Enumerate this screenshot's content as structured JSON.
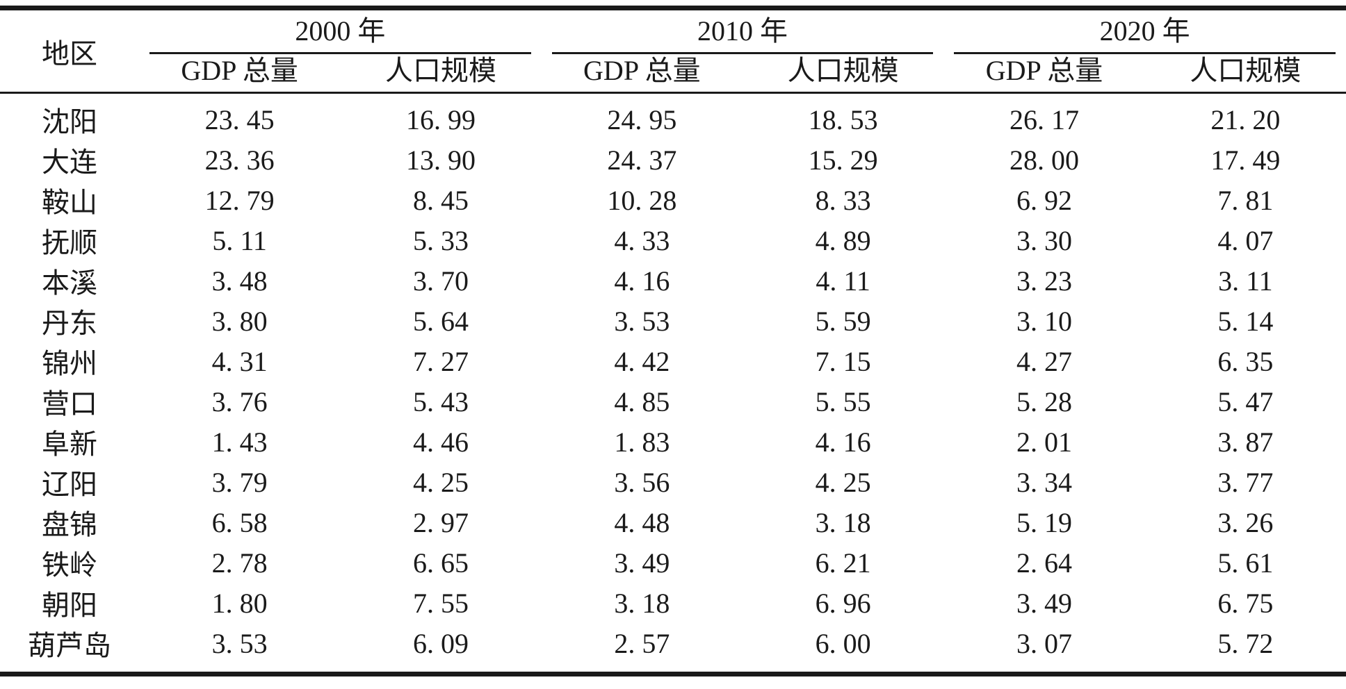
{
  "chart_data": {
    "type": "table",
    "unit_note": "",
    "header": {
      "region": "地区",
      "groups": [
        {
          "year": "2000 年",
          "subcolumns": [
            "GDP 总量",
            "人口规模"
          ]
        },
        {
          "year": "2010 年",
          "subcolumns": [
            "GDP 总量",
            "人口规模"
          ]
        },
        {
          "year": "2020 年",
          "subcolumns": [
            "GDP 总量",
            "人口规模"
          ]
        }
      ]
    },
    "rows": [
      {
        "region": "沈阳",
        "values": [
          "23. 45",
          "16. 99",
          "24. 95",
          "18. 53",
          "26. 17",
          "21. 20"
        ]
      },
      {
        "region": "大连",
        "values": [
          "23. 36",
          "13. 90",
          "24. 37",
          "15. 29",
          "28. 00",
          "17. 49"
        ]
      },
      {
        "region": "鞍山",
        "values": [
          "12. 79",
          "8. 45",
          "10. 28",
          "8. 33",
          "6. 92",
          "7. 81"
        ]
      },
      {
        "region": "抚顺",
        "values": [
          "5. 11",
          "5. 33",
          "4. 33",
          "4. 89",
          "3. 30",
          "4. 07"
        ]
      },
      {
        "region": "本溪",
        "values": [
          "3. 48",
          "3. 70",
          "4. 16",
          "4. 11",
          "3. 23",
          "3. 11"
        ]
      },
      {
        "region": "丹东",
        "values": [
          "3. 80",
          "5. 64",
          "3. 53",
          "5. 59",
          "3. 10",
          "5. 14"
        ]
      },
      {
        "region": "锦州",
        "values": [
          "4. 31",
          "7. 27",
          "4. 42",
          "7. 15",
          "4. 27",
          "6. 35"
        ]
      },
      {
        "region": "营口",
        "values": [
          "3. 76",
          "5. 43",
          "4. 85",
          "5. 55",
          "5. 28",
          "5. 47"
        ]
      },
      {
        "region": "阜新",
        "values": [
          "1. 43",
          "4. 46",
          "1. 83",
          "4. 16",
          "2. 01",
          "3. 87"
        ]
      },
      {
        "region": "辽阳",
        "values": [
          "3. 79",
          "4. 25",
          "3. 56",
          "4. 25",
          "3. 34",
          "3. 77"
        ]
      },
      {
        "region": "盘锦",
        "values": [
          "6. 58",
          "2. 97",
          "4. 48",
          "3. 18",
          "5. 19",
          "3. 26"
        ]
      },
      {
        "region": "铁岭",
        "values": [
          "2. 78",
          "6. 65",
          "3. 49",
          "6. 21",
          "2. 64",
          "5. 61"
        ]
      },
      {
        "region": "朝阳",
        "values": [
          "1. 80",
          "7. 55",
          "3. 18",
          "6. 96",
          "3. 49",
          "6. 75"
        ]
      },
      {
        "region": "葫芦岛",
        "values": [
          "3. 53",
          "6. 09",
          "2. 57",
          "6. 00",
          "3. 07",
          "5. 72"
        ]
      }
    ],
    "colors": {
      "text": "#1a1a1a",
      "rule": "#1a1a1a",
      "background": "#ffffff"
    },
    "layout": {
      "thick_rules": [
        "top",
        "bottom"
      ],
      "thin_rules": [
        "under-year-spanners",
        "under-subheader"
      ],
      "row_borders": "none"
    }
  }
}
